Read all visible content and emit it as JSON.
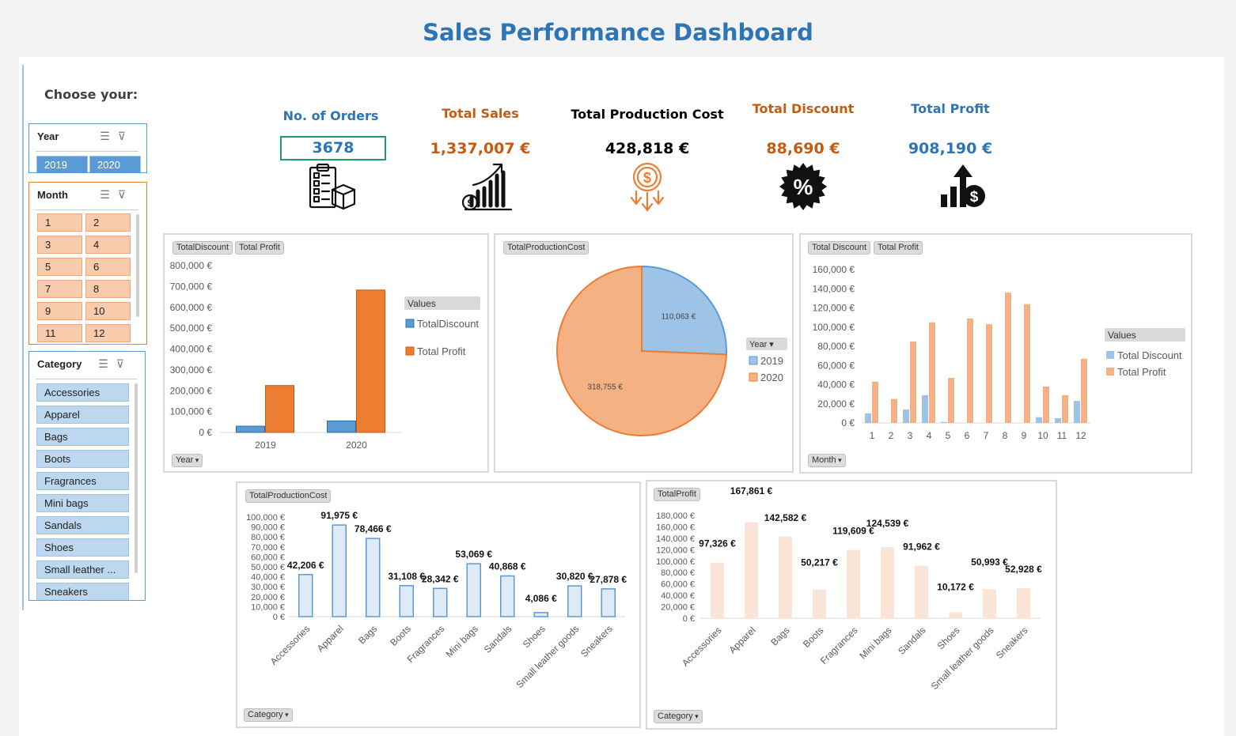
{
  "title": "Sales Performance Dashboard",
  "sidebar": {
    "heading": "Choose your:",
    "year_slicer": {
      "title": "Year",
      "items": [
        "2019",
        "2020"
      ]
    },
    "month_slicer": {
      "title": "Month",
      "items": [
        "1",
        "2",
        "3",
        "4",
        "5",
        "6",
        "7",
        "8",
        "9",
        "10",
        "11",
        "12"
      ]
    },
    "category_slicer": {
      "title": "Category",
      "items": [
        "Accessories",
        "Apparel",
        "Bags",
        "Boots",
        "Fragrances",
        "Mini bags",
        "Sandals",
        "Shoes",
        "Small leather ...",
        "Sneakers"
      ]
    }
  },
  "kpis": [
    {
      "label": "No. of Orders",
      "value": "3678",
      "icon": "order-checklist-icon",
      "color": "#2e75b6"
    },
    {
      "label": "Total Sales",
      "value": "1,337,007  €",
      "icon": "sales-growth-icon",
      "color": "#c55a11"
    },
    {
      "label": "Total Production Cost",
      "value": "428,818  €",
      "icon": "cost-down-icon",
      "color": "#000000"
    },
    {
      "label": "Total Discount",
      "value": "88,690  €",
      "icon": "discount-badge-icon",
      "color": "#c55a11"
    },
    {
      "label": "Total Profit",
      "value": "908,190  €",
      "icon": "profit-up-icon",
      "color": "#2e75b6"
    }
  ],
  "colors": {
    "blue": "#5b9bd5",
    "orange": "#ed7d31",
    "light_blue": "#9dc3e6",
    "light_orange": "#f4b183"
  },
  "chart_data": [
    {
      "type": "bar",
      "id": "year-chart",
      "chips": [
        "TotalDiscount",
        "Total Profit"
      ],
      "filter_chip": "Year",
      "legend_title": "Values",
      "categories": [
        "2019",
        "2020"
      ],
      "series": [
        {
          "name": "TotalDiscount",
          "values": [
            30000,
            55000
          ]
        },
        {
          "name": "Total Profit",
          "values": [
            225000,
            683000
          ]
        }
      ],
      "ylim": [
        0,
        800000
      ],
      "yticks": [
        "0 €",
        "100,000 €",
        "200,000 €",
        "300,000 €",
        "400,000 €",
        "500,000 €",
        "600,000 €",
        "700,000 €",
        "800,000 €"
      ]
    },
    {
      "type": "pie",
      "id": "cost-pie",
      "chips": [
        "TotalProductionCost"
      ],
      "legend_title": "Year",
      "categories": [
        "2019",
        "2020"
      ],
      "values": [
        110063,
        318755
      ],
      "labels": [
        "110,063 €",
        "318,755 €"
      ]
    },
    {
      "type": "bar",
      "id": "month-chart",
      "chips": [
        "Total Discount",
        "Total Profit"
      ],
      "filter_chip": "Month",
      "legend_title": "Values",
      "categories": [
        "1",
        "2",
        "3",
        "4",
        "5",
        "6",
        "7",
        "8",
        "9",
        "10",
        "11",
        "12"
      ],
      "series": [
        {
          "name": "Total Discount",
          "values": [
            10000,
            0,
            14000,
            29000,
            1000,
            0,
            0,
            0,
            0,
            6000,
            5000,
            23000
          ]
        },
        {
          "name": "Total Profit",
          "values": [
            43000,
            25000,
            85000,
            105000,
            47000,
            109000,
            103000,
            136000,
            124000,
            38000,
            29000,
            67000
          ]
        }
      ],
      "ylim": [
        0,
        160000
      ],
      "yticks": [
        "0 €",
        "20,000 €",
        "40,000 €",
        "60,000 €",
        "80,000 €",
        "100,000 €",
        "120,000 €",
        "140,000 €",
        "160,000 €"
      ]
    },
    {
      "type": "bar",
      "id": "category-cost-chart",
      "chips": [
        "TotalProductionCost"
      ],
      "filter_chip": "Category",
      "categories": [
        "Accessories",
        "Apparel",
        "Bags",
        "Boots",
        "Fragrances",
        "Mini bags",
        "Sandals",
        "Shoes",
        "Small leather goods",
        "Sneakers"
      ],
      "values": [
        42206,
        91975,
        78466,
        31108,
        28342,
        53069,
        40868,
        4086,
        30820,
        27878
      ],
      "labels": [
        "42,206 €",
        "91,975 €",
        "78,466 €",
        "31,108 €",
        "28,342 €",
        "53,069 €",
        "40,868 €",
        "4,086 €",
        "30,820 €",
        "27,878 €"
      ],
      "ylim": [
        0,
        100000
      ],
      "yticks": [
        "0 €",
        "10,000 €",
        "20,000 €",
        "30,000 €",
        "40,000 €",
        "50,000 €",
        "60,000 €",
        "70,000 €",
        "80,000 €",
        "90,000 €",
        "100,000 €"
      ]
    },
    {
      "type": "bar",
      "id": "category-profit-chart",
      "chips": [
        "TotalProfit"
      ],
      "filter_chip": "Category",
      "categories": [
        "Accessories",
        "Apparel",
        "Bags",
        "Boots",
        "Fragrances",
        "Mini bags",
        "Sandals",
        "Shoes",
        "Small leather goods",
        "Sneakers"
      ],
      "values": [
        97326,
        167861,
        142582,
        50217,
        119609,
        124539,
        91962,
        10172,
        50993,
        52928
      ],
      "labels": [
        "97,326 €",
        "167,861 €",
        "142,582 €",
        "50,217 €",
        "119,609 €",
        "124,539 €",
        "91,962 €",
        "10,172 €",
        "50,993 €",
        "52,928 €"
      ],
      "ylim": [
        0,
        180000
      ],
      "yticks": [
        "0 €",
        "20,000 €",
        "40,000 €",
        "60,000 €",
        "80,000 €",
        "100,000 €",
        "120,000 €",
        "140,000 €",
        "160,000 €",
        "180,000 €"
      ]
    }
  ]
}
